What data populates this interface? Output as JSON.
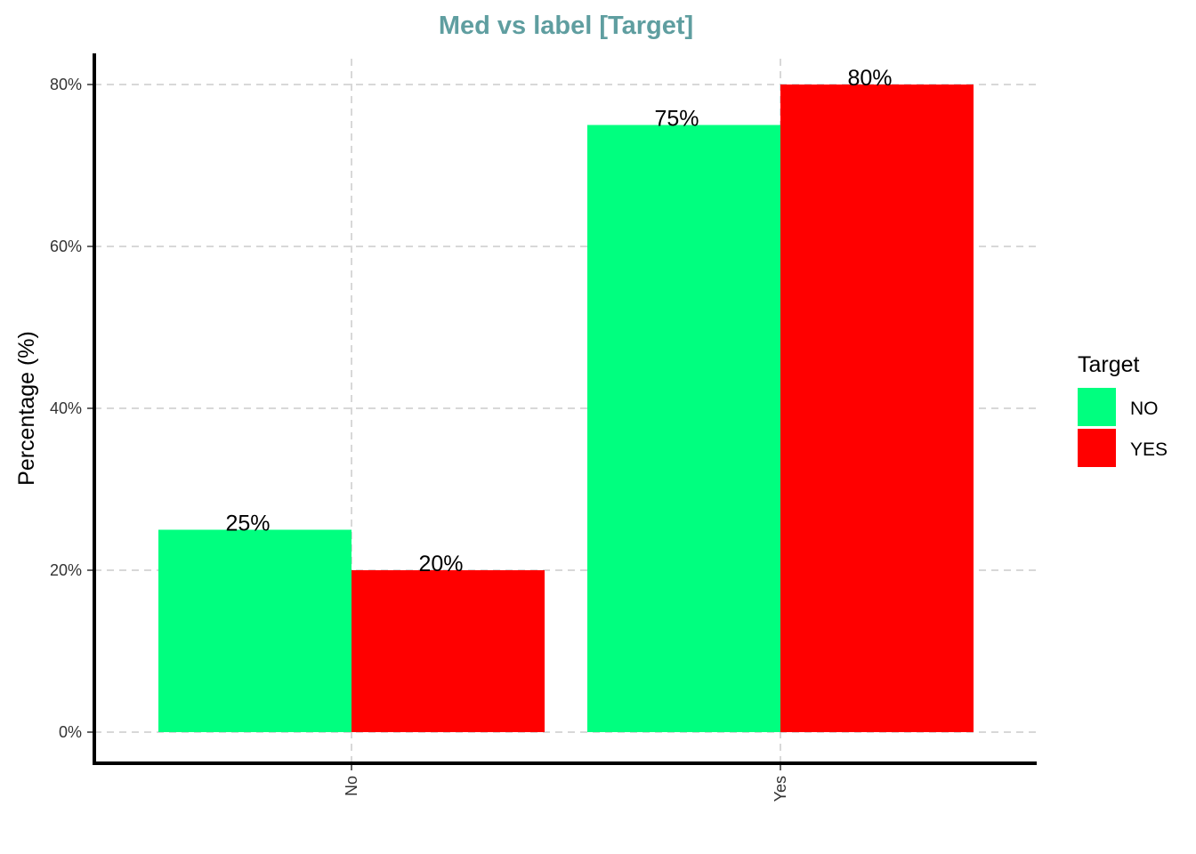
{
  "chart_data": {
    "type": "bar",
    "title": "Med vs label [Target]",
    "xlabel": "",
    "ylabel": "Percentage (%)",
    "categories": [
      "No",
      "Yes"
    ],
    "series": [
      {
        "name": "NO",
        "color": "#00ff7f",
        "values": [
          25,
          75
        ],
        "labels": [
          "25%",
          "75%"
        ]
      },
      {
        "name": "YES",
        "color": "#ff0000",
        "values": [
          20,
          80
        ],
        "labels": [
          "20%",
          "80%"
        ]
      }
    ],
    "ylim": [
      0,
      84
    ],
    "yticks": [
      0,
      20,
      40,
      60,
      80
    ],
    "ytick_labels": [
      "0%",
      "20%",
      "40%",
      "60%",
      "80%"
    ],
    "grid": true,
    "legend": {
      "title": "Target",
      "position": "right"
    },
    "x_tick_rotation": "vertical"
  }
}
